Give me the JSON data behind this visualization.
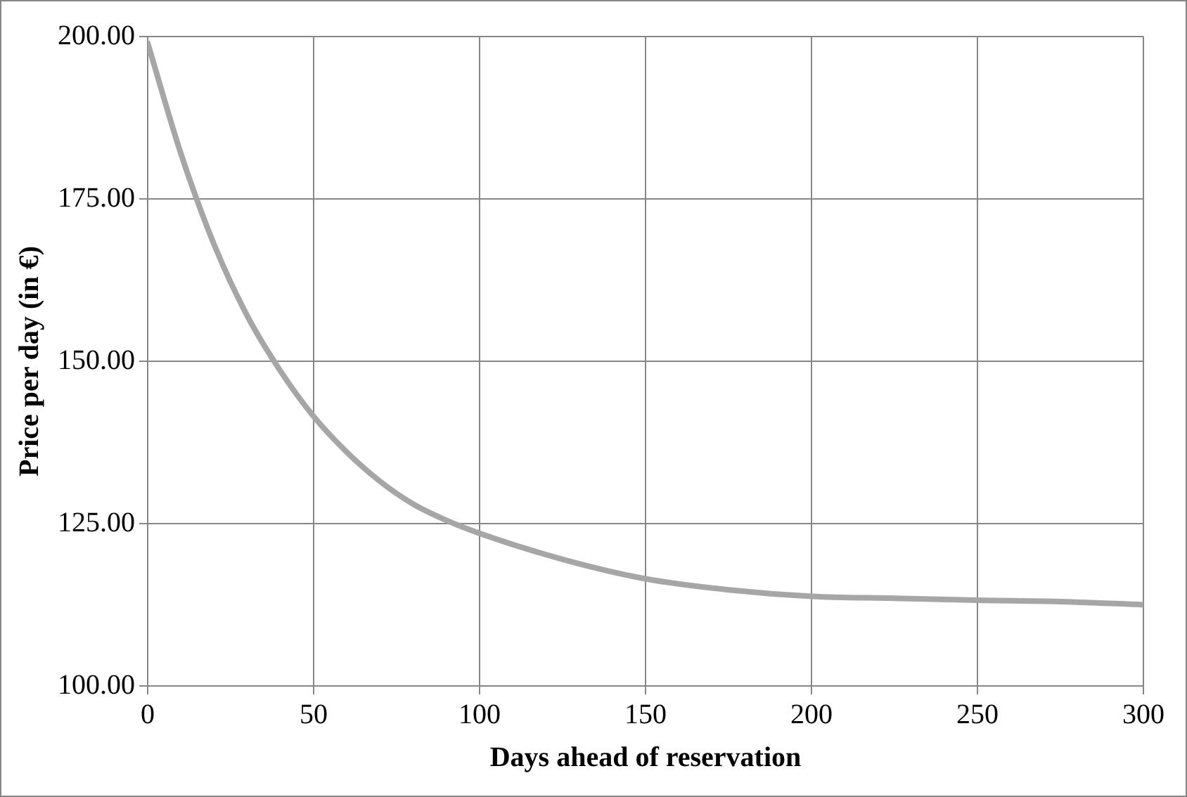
{
  "chart_data": {
    "type": "line",
    "xlabel": "Days ahead of reservation",
    "ylabel": "Price per day (in €)",
    "x": [
      0,
      10,
      20,
      30,
      40,
      50,
      60,
      70,
      80,
      90,
      100,
      125,
      150,
      175,
      200,
      225,
      250,
      275,
      300
    ],
    "series": [
      {
        "color": "#a6a6a6",
        "values": [
          199,
          182,
          168,
          157,
          148.5,
          141.5,
          136,
          131.5,
          128,
          125.5,
          123.5,
          119.5,
          116.5,
          114.8,
          113.8,
          113.5,
          113.2,
          113,
          112.5
        ]
      }
    ],
    "xlim": [
      0,
      300
    ],
    "xticks": [
      0,
      50,
      100,
      150,
      200,
      250,
      300
    ],
    "ylim": [
      100,
      200
    ],
    "yticks": [
      {
        "value": 100,
        "label": "100.00"
      },
      {
        "value": 125,
        "label": "125.00"
      },
      {
        "value": 150,
        "label": "150.00"
      },
      {
        "value": 175,
        "label": "175.00"
      },
      {
        "value": 200,
        "label": "200.00"
      }
    ],
    "grid": true,
    "legend": false,
    "marker": "none",
    "line_style": "solid"
  }
}
